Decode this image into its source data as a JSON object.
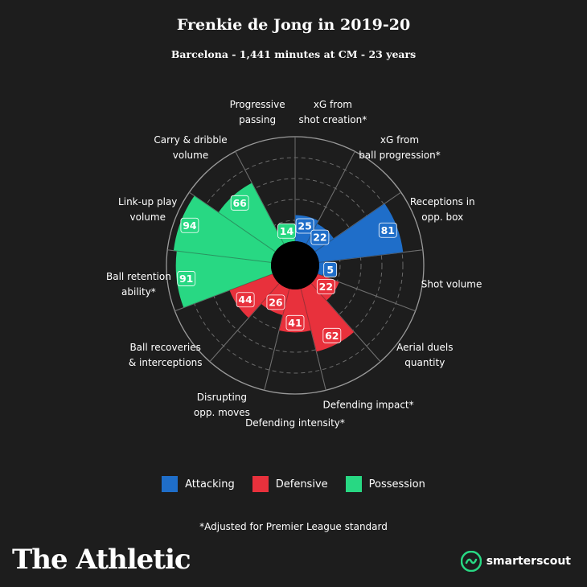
{
  "header": {
    "title": "Frenkie de Jong in 2019-20",
    "subtitle": "Barcelona - 1,441 minutes at CM - 23 years"
  },
  "colors": {
    "Attacking": "#1f6ec9",
    "Defensive": "#e8313c",
    "Possession": "#28d883"
  },
  "chart_data": {
    "type": "radar-bar",
    "rlim": [
      0,
      100
    ],
    "rings": [
      20,
      40,
      60,
      80,
      100
    ],
    "categories": [
      "xG from\nshot creation*",
      "xG from\nball progression*",
      "Receptions in\nopp. box",
      "Shot volume",
      "Aerial duels\nquantity",
      "Defending impact*",
      "Defending intensity*",
      "Disrupting\nopp. moves",
      "Ball recoveries\n& interceptions",
      "Ball retention\nability*",
      "Link-up play\nvolume",
      "Carry & dribble\nvolume",
      "Progressive\npassing"
    ],
    "values": [
      25,
      22,
      81,
      5,
      22,
      62,
      41,
      26,
      44,
      91,
      94,
      66,
      14
    ],
    "groups": [
      "Attacking",
      "Attacking",
      "Attacking",
      "Attacking",
      "Defensive",
      "Defensive",
      "Defensive",
      "Defensive",
      "Defensive",
      "Possession",
      "Possession",
      "Possession",
      "Possession"
    ],
    "legend": [
      "Attacking",
      "Defensive",
      "Possession"
    ]
  },
  "legend_labels": [
    "Attacking",
    "Defensive",
    "Possession"
  ],
  "footnote": "*Adjusted for Premier League standard",
  "brand": "The Athletic",
  "scout_brand": "smarterscout"
}
